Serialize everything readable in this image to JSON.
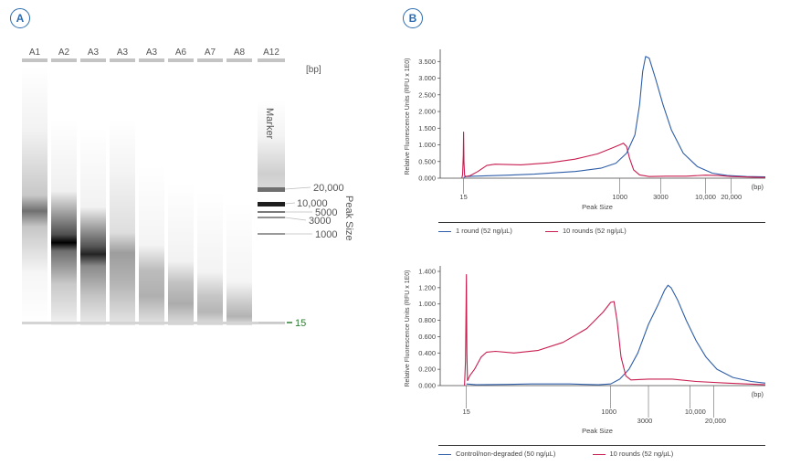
{
  "panel_a": {
    "badge": "A",
    "lanes": [
      "A1",
      "A2",
      "A3",
      "A3",
      "A3",
      "A6",
      "A7",
      "A8",
      "A12"
    ],
    "unit_label": "[bp]",
    "marker_label": "Marker",
    "peak_size_label": "Peak Size",
    "marker_bands": [
      "20,000",
      "10,000",
      "5000",
      "3000",
      "1000"
    ],
    "lower_marker": "15",
    "lower_marker_color": "#2e7d32"
  },
  "panel_b": {
    "badge": "B"
  },
  "chart_data": [
    {
      "type": "line",
      "ylabel": "Relative Fluorescence Units (RFU x 1E0)",
      "xlabel": "Peak Size",
      "x_unit": "(bp)",
      "y_ticks": [
        "0.000",
        "0.500",
        "1.000",
        "1.500",
        "2.000",
        "2.500",
        "3.000",
        "3.500"
      ],
      "ylim": [
        0,
        3.7
      ],
      "x_ticks": [
        "15",
        "1000",
        "3000",
        "10,000",
        "20,000"
      ],
      "series": [
        {
          "name": "1 round (52 ng/µL)",
          "color": "#2f5ea8",
          "points": [
            [
              15,
              0.02
            ],
            [
              16,
              0.05
            ],
            [
              20,
              0.06
            ],
            [
              50,
              0.09
            ],
            [
              100,
              0.12
            ],
            [
              300,
              0.2
            ],
            [
              600,
              0.3
            ],
            [
              900,
              0.45
            ],
            [
              1200,
              0.75
            ],
            [
              1500,
              1.3
            ],
            [
              1700,
              2.2
            ],
            [
              1850,
              3.2
            ],
            [
              2000,
              3.65
            ],
            [
              2200,
              3.6
            ],
            [
              2600,
              3.0
            ],
            [
              3200,
              2.2
            ],
            [
              4000,
              1.45
            ],
            [
              5500,
              0.75
            ],
            [
              8000,
              0.35
            ],
            [
              12000,
              0.15
            ],
            [
              18000,
              0.08
            ],
            [
              30000,
              0.05
            ],
            [
              50000,
              0.04
            ]
          ]
        },
        {
          "name": "10 rounds (52 ng/µL)",
          "color": "#c81e50",
          "points": [
            [
              14.3,
              0.0
            ],
            [
              14.6,
              0.1
            ],
            [
              14.9,
              0.7
            ],
            [
              15,
              1.38
            ],
            [
              15.15,
              0.5
            ],
            [
              15.4,
              0.08
            ],
            [
              16,
              0.05
            ],
            [
              18,
              0.08
            ],
            [
              22,
              0.2
            ],
            [
              28,
              0.38
            ],
            [
              35,
              0.42
            ],
            [
              70,
              0.4
            ],
            [
              150,
              0.46
            ],
            [
              300,
              0.57
            ],
            [
              550,
              0.73
            ],
            [
              800,
              0.9
            ],
            [
              1000,
              1.0
            ],
            [
              1100,
              1.05
            ],
            [
              1200,
              0.95
            ],
            [
              1300,
              0.6
            ],
            [
              1450,
              0.25
            ],
            [
              1700,
              0.1
            ],
            [
              2200,
              0.05
            ],
            [
              3500,
              0.06
            ],
            [
              6000,
              0.06
            ],
            [
              10000,
              0.09
            ],
            [
              14000,
              0.08
            ],
            [
              20000,
              0.05
            ],
            [
              50000,
              0.02
            ]
          ]
        }
      ]
    },
    {
      "type": "line",
      "ylabel": "Relative Fluorescence Units (RFU x 1E0)",
      "xlabel": "Peak Size",
      "x_unit": "(bp)",
      "y_ticks": [
        "0.000",
        "0.200",
        "0.400",
        "0.600",
        "0.800",
        "1.000",
        "1.200",
        "1.400"
      ],
      "ylim": [
        0,
        1.4
      ],
      "x_ticks": [
        "15",
        "1000",
        "3000",
        "10,000",
        "20,000"
      ],
      "series": [
        {
          "name": "Control/non-degraded (50 ng/µL)",
          "color": "#2f5ea8",
          "points": [
            [
              15,
              0.02
            ],
            [
              20,
              0.01
            ],
            [
              50,
              0.015
            ],
            [
              100,
              0.02
            ],
            [
              300,
              0.02
            ],
            [
              700,
              0.01
            ],
            [
              1000,
              0.02
            ],
            [
              1300,
              0.08
            ],
            [
              1700,
              0.2
            ],
            [
              2200,
              0.4
            ],
            [
              3000,
              0.75
            ],
            [
              4000,
              1.0
            ],
            [
              4800,
              1.17
            ],
            [
              5300,
              1.23
            ],
            [
              5800,
              1.2
            ],
            [
              7000,
              1.05
            ],
            [
              9000,
              0.8
            ],
            [
              12000,
              0.55
            ],
            [
              16000,
              0.35
            ],
            [
              22000,
              0.2
            ],
            [
              35000,
              0.1
            ],
            [
              60000,
              0.05
            ],
            [
              90000,
              0.03
            ]
          ]
        },
        {
          "name": "10 rounds (52 ng/µL)",
          "color": "#c81e50",
          "points": [
            [
              14.2,
              0.0
            ],
            [
              14.6,
              0.3
            ],
            [
              15,
              1.36
            ],
            [
              15.2,
              0.4
            ],
            [
              15.5,
              0.06
            ],
            [
              16.5,
              0.12
            ],
            [
              19,
              0.2
            ],
            [
              23,
              0.35
            ],
            [
              27,
              0.41
            ],
            [
              35,
              0.42
            ],
            [
              60,
              0.4
            ],
            [
              120,
              0.43
            ],
            [
              250,
              0.53
            ],
            [
              500,
              0.7
            ],
            [
              800,
              0.9
            ],
            [
              1000,
              1.02
            ],
            [
              1100,
              1.03
            ],
            [
              1200,
              0.8
            ],
            [
              1350,
              0.35
            ],
            [
              1550,
              0.12
            ],
            [
              1800,
              0.07
            ],
            [
              3000,
              0.08
            ],
            [
              6000,
              0.08
            ],
            [
              12000,
              0.05
            ],
            [
              30000,
              0.03
            ],
            [
              90000,
              0.01
            ]
          ]
        }
      ]
    }
  ]
}
